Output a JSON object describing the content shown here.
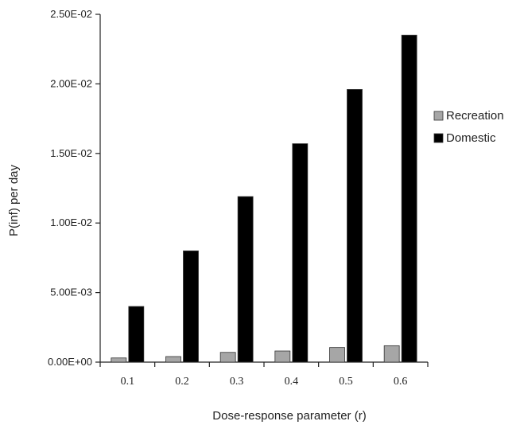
{
  "chart_data": {
    "type": "bar",
    "title": "",
    "xlabel": "Dose-response parameter (r)",
    "ylabel": "P(inf) per day",
    "categories": [
      "0.1",
      "0.2",
      "0.3",
      "0.4",
      "0.5",
      "0.6"
    ],
    "ylim": [
      0,
      0.025
    ],
    "yticks": [
      0,
      0.005,
      0.01,
      0.015,
      0.02,
      0.025
    ],
    "ytick_labels": [
      "0.00E+00",
      "5.00E-03",
      "1.00E-02",
      "1.50E-02",
      "2.00E-02",
      "2.50E-02"
    ],
    "grid": false,
    "legend_position": "right",
    "series": [
      {
        "name": "Recreation",
        "color": "#a6a6a6",
        "values": [
          0.0003,
          0.0004,
          0.0007,
          0.0008,
          0.00105,
          0.00118
        ]
      },
      {
        "name": "Domestic",
        "color": "#000000",
        "values": [
          0.004,
          0.008,
          0.0119,
          0.0157,
          0.0196,
          0.0235
        ]
      }
    ]
  }
}
